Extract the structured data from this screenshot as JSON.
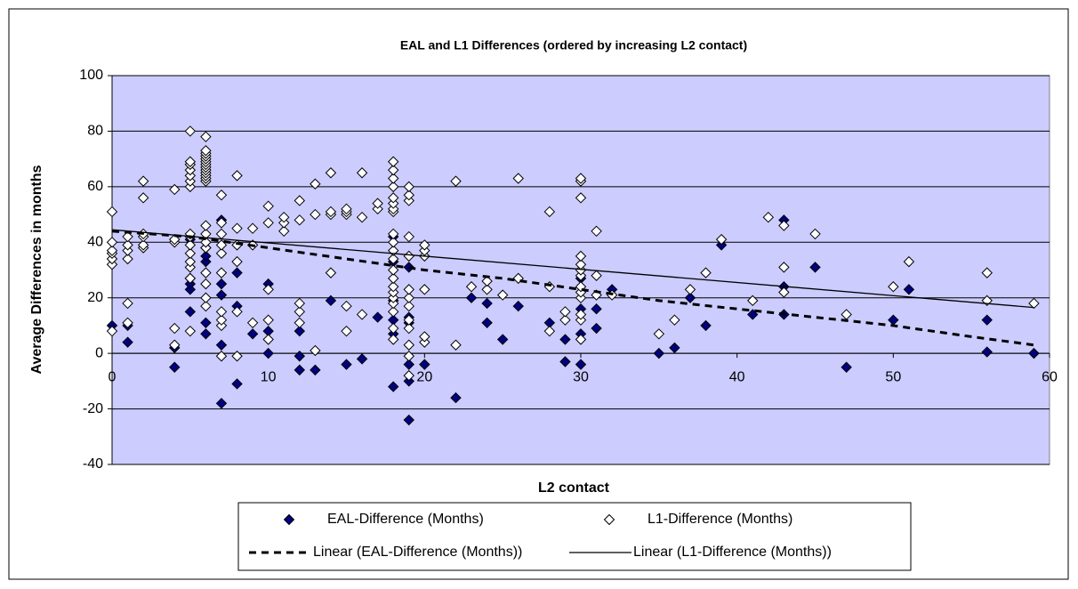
{
  "chart_data": {
    "type": "scatter",
    "title": "EAL and L1 Differences (ordered by increasing L2 contact)",
    "xlabel": "L2 contact",
    "ylabel": "Average Differences in months",
    "xlim": [
      0,
      60
    ],
    "xticks": [
      0,
      10,
      20,
      30,
      40,
      50,
      60
    ],
    "ylim": [
      -40,
      100
    ],
    "yticks": [
      -40,
      -20,
      0,
      20,
      40,
      60,
      80,
      100
    ],
    "grid": true,
    "background": "#ccccff",
    "series": [
      {
        "name": "EAL-Difference (Months)",
        "style": "diamond",
        "color": "#000080",
        "x": [
          0,
          1,
          1,
          4,
          4,
          5,
          5,
          5,
          5,
          5,
          6,
          6,
          6,
          6,
          6,
          7,
          7,
          7,
          7,
          7,
          8,
          8,
          8,
          9,
          10,
          10,
          10,
          12,
          12,
          12,
          13,
          14,
          15,
          16,
          17,
          18,
          18,
          18,
          18,
          18,
          18,
          19,
          19,
          19,
          19,
          19,
          19,
          20,
          22,
          23,
          24,
          24,
          25,
          26,
          28,
          29,
          29,
          30,
          30,
          30,
          30,
          31,
          31,
          32,
          35,
          36,
          37,
          38,
          39,
          41,
          43,
          43,
          43,
          45,
          47,
          50,
          51,
          56,
          56,
          59
        ],
        "values": [
          10,
          4,
          10,
          -5,
          2,
          15,
          23,
          25,
          27,
          41,
          7,
          11,
          33,
          35,
          38,
          -18,
          3,
          21,
          25,
          48,
          -11,
          17,
          29,
          7,
          0,
          8,
          25,
          -6,
          -1,
          8,
          -6,
          19,
          -4,
          -2,
          13,
          -12,
          7,
          12,
          19,
          33,
          42,
          -24,
          -10,
          -4,
          11,
          13,
          31,
          -4,
          -16,
          20,
          11,
          18,
          5,
          17,
          11,
          -3,
          5,
          -4,
          7,
          16,
          27,
          9,
          16,
          23,
          0,
          2,
          20,
          10,
          39,
          14,
          14,
          24,
          48,
          31,
          -5,
          12,
          23,
          0.5,
          12,
          0
        ]
      },
      {
        "name": "L1-Difference (Months)",
        "style": "diamond",
        "color": "#ffffff",
        "x": [
          0,
          0,
          0,
          0,
          0,
          0,
          0,
          1,
          1,
          1,
          1,
          1,
          1,
          2,
          2,
          2,
          2,
          2,
          2,
          4,
          4,
          4,
          4,
          4,
          5,
          5,
          5,
          5,
          5,
          5,
          5,
          5,
          5,
          5,
          5,
          5,
          5,
          5,
          5,
          6,
          6,
          6,
          6,
          6,
          6,
          6,
          6,
          6,
          6,
          6,
          6,
          6,
          6,
          6,
          6,
          6,
          6,
          6,
          6,
          6,
          7,
          7,
          7,
          7,
          7,
          7,
          7,
          7,
          7,
          7,
          8,
          8,
          8,
          8,
          8,
          8,
          9,
          9,
          9,
          10,
          10,
          10,
          10,
          10,
          11,
          11,
          11,
          12,
          12,
          12,
          12,
          12,
          13,
          13,
          13,
          14,
          14,
          14,
          14,
          15,
          15,
          15,
          15,
          15,
          16,
          16,
          16,
          17,
          17,
          18,
          18,
          18,
          18,
          18,
          18,
          18,
          18,
          18,
          18,
          18,
          18,
          18,
          18,
          18,
          18,
          18,
          18,
          18,
          18,
          18,
          19,
          19,
          19,
          19,
          19,
          19,
          19,
          19,
          19,
          19,
          19,
          19,
          19,
          20,
          20,
          20,
          20,
          20,
          20,
          22,
          22,
          23,
          24,
          24,
          25,
          26,
          26,
          28,
          28,
          28,
          29,
          29,
          30,
          30,
          30,
          30,
          30,
          30,
          30,
          30,
          30,
          30,
          30,
          30,
          30,
          31,
          31,
          31,
          32,
          35,
          36,
          37,
          38,
          39,
          41,
          42,
          43,
          43,
          43,
          45,
          47,
          50,
          51,
          56,
          56,
          59
        ],
        "values": [
          8,
          32,
          34,
          36,
          37,
          40,
          51,
          11,
          18,
          34,
          37,
          39,
          42,
          38,
          39,
          42,
          43,
          56,
          62,
          3,
          9,
          40,
          41,
          59,
          8,
          27,
          31,
          33,
          36,
          39,
          42,
          43,
          60,
          62,
          64,
          66,
          68,
          69,
          80,
          17,
          20,
          25,
          29,
          38,
          40,
          43,
          46,
          62,
          63,
          64,
          65,
          66,
          67,
          68,
          69,
          70,
          71,
          72,
          73,
          78,
          -1,
          10,
          12,
          15,
          29,
          36,
          39,
          43,
          47,
          57,
          -1,
          15,
          33,
          39,
          45,
          64,
          11,
          39,
          45,
          5,
          12,
          23,
          47,
          53,
          44,
          47,
          49,
          11,
          15,
          18,
          48,
          55,
          1,
          50,
          61,
          29,
          50,
          51,
          65,
          8,
          17,
          50,
          51,
          52,
          14,
          49,
          65,
          52,
          54,
          5,
          9,
          15,
          18,
          20,
          22,
          24,
          27,
          30,
          34,
          37,
          40,
          43,
          51,
          52,
          54,
          56,
          60,
          63,
          66,
          69,
          -8,
          -1,
          3,
          9,
          12,
          17,
          20,
          23,
          35,
          42,
          55,
          57,
          60,
          4,
          6,
          23,
          35,
          37,
          39,
          3,
          62,
          24,
          23,
          26,
          21,
          27,
          63,
          8,
          24,
          51,
          12,
          15,
          5,
          12,
          14,
          20,
          22,
          24,
          28,
          30,
          32,
          35,
          56,
          62,
          63,
          21,
          28,
          44,
          21,
          7,
          12,
          23,
          29,
          41,
          19,
          49,
          22,
          31,
          46,
          43,
          14,
          24,
          33,
          19,
          29,
          18
        ]
      },
      {
        "name": "Linear (EAL-Difference (Months))",
        "style": "dashed",
        "color": "#000000",
        "x": [
          0,
          5,
          10,
          15,
          20,
          25,
          30,
          35,
          40,
          45,
          50,
          55,
          59
        ],
        "values": [
          44,
          42,
          38,
          34,
          30,
          27,
          23,
          19,
          16,
          13,
          10,
          6,
          3
        ]
      },
      {
        "name": "Linear (L1-Difference (Months))",
        "style": "solid",
        "color": "#000000",
        "x": [
          0,
          59
        ],
        "values": [
          44.5,
          16.5
        ]
      }
    ]
  }
}
